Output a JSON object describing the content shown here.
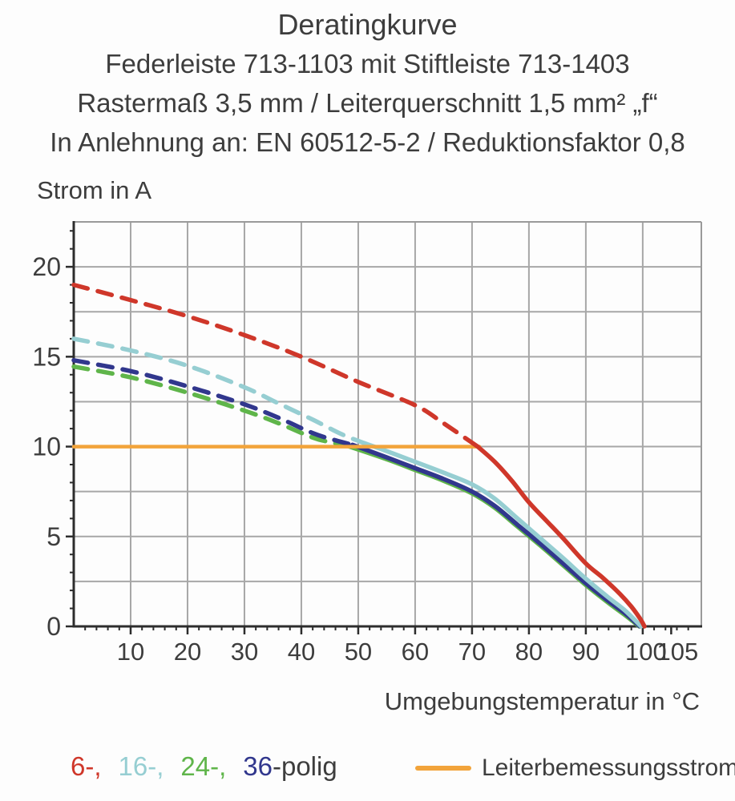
{
  "title": {
    "line1": "Deratingkurve",
    "line2": "Federleiste 713-1103 mit Stiftleiste 713-1403",
    "line3": "Rastermaß 3,5 mm / Leiterquerschnitt 1,5 mm² „f“",
    "line4": "In Anlehnung an: EN 60512-5-2 / Reduktionsfaktor 0,8"
  },
  "chart_data": {
    "type": "line",
    "title": "Deratingkurve",
    "ylabel": "Strom in A",
    "xlabel": "Umgebungstemperatur in °C",
    "xlim": [
      0,
      110.3
    ],
    "ylim": [
      0,
      22.5
    ],
    "grid": true,
    "x_gridlines": [
      10,
      20,
      30,
      40,
      50,
      60,
      70,
      80,
      90,
      100
    ],
    "y_gridlines": [
      2.5,
      5,
      7.5,
      10,
      12.5,
      15,
      17.5,
      20
    ],
    "x_major_ticks": [
      10,
      20,
      30,
      40,
      50,
      60,
      70,
      80,
      90,
      100,
      105
    ],
    "x_tick_labels": [
      "10",
      "20",
      "30",
      "40",
      "50",
      "60",
      "70",
      "80",
      "90",
      "100",
      "105"
    ],
    "x_minor_tick_step": 2,
    "y_major_ticks": [
      0,
      5,
      10,
      15,
      20
    ],
    "y_tick_labels": [
      "0",
      "5",
      "10",
      "15",
      "20"
    ],
    "y_minor_tick_step": 1,
    "colors": {
      "grid": "#a7a7a7",
      "axis": "#2d2d2d",
      "text": "#3d3d3d"
    },
    "draw_order": [
      "24-polig",
      "36-polig",
      "16-polig",
      "Leiterbemessungsstrom",
      "6-polig"
    ],
    "series": [
      {
        "name": "6-polig",
        "color": "#cf372a",
        "line_width": 5.5,
        "dashed_points": [
          [
            0,
            19.0
          ],
          [
            10,
            18.15
          ],
          [
            20,
            17.25
          ],
          [
            30,
            16.2
          ],
          [
            40,
            15.0
          ],
          [
            50,
            13.6
          ],
          [
            60,
            12.3
          ],
          [
            65,
            11.3
          ],
          [
            71,
            10.0
          ]
        ],
        "solid_points": [
          [
            71,
            10.0
          ],
          [
            74,
            9.15
          ],
          [
            77,
            8.1
          ],
          [
            80,
            6.9
          ],
          [
            83,
            5.9
          ],
          [
            86,
            4.9
          ],
          [
            90,
            3.5
          ],
          [
            93,
            2.7
          ],
          [
            96,
            1.8
          ],
          [
            98,
            1.1
          ],
          [
            99.5,
            0.45
          ],
          [
            100.3,
            0
          ]
        ]
      },
      {
        "name": "16-polig",
        "color": "#96ced2",
        "line_width": 5.5,
        "dashed_points": [
          [
            0,
            16.0
          ],
          [
            10,
            15.35
          ],
          [
            20,
            14.5
          ],
          [
            30,
            13.3
          ],
          [
            36,
            12.4
          ],
          [
            42,
            11.5
          ],
          [
            47,
            10.7
          ],
          [
            51,
            10.2
          ]
        ],
        "solid_points": [
          [
            51,
            10.2
          ],
          [
            55,
            9.75
          ],
          [
            60,
            9.15
          ],
          [
            65,
            8.55
          ],
          [
            70,
            7.9
          ],
          [
            74,
            7.1
          ],
          [
            78,
            6.0
          ],
          [
            82,
            4.9
          ],
          [
            86,
            3.8
          ],
          [
            90,
            2.65
          ],
          [
            94,
            1.6
          ],
          [
            97,
            0.85
          ],
          [
            99.7,
            0
          ]
        ]
      },
      {
        "name": "24-polig",
        "color": "#5fb54a",
        "line_width": 5.5,
        "dashed_points": [
          [
            0,
            14.45
          ],
          [
            10,
            13.85
          ],
          [
            20,
            13.0
          ],
          [
            30,
            12.0
          ],
          [
            36,
            11.3
          ],
          [
            42,
            10.5
          ],
          [
            45,
            10.25
          ],
          [
            48,
            10.05
          ]
        ],
        "solid_points": [
          [
            48,
            10.05
          ],
          [
            55,
            9.3
          ],
          [
            60,
            8.7
          ],
          [
            65,
            8.1
          ],
          [
            70,
            7.4
          ],
          [
            74,
            6.6
          ],
          [
            78,
            5.55
          ],
          [
            82,
            4.5
          ],
          [
            86,
            3.4
          ],
          [
            90,
            2.3
          ],
          [
            94,
            1.3
          ],
          [
            97,
            0.6
          ],
          [
            99.4,
            0
          ]
        ]
      },
      {
        "name": "36-polig",
        "color": "#31378d",
        "line_width": 5.5,
        "dashed_points": [
          [
            0,
            14.8
          ],
          [
            10,
            14.2
          ],
          [
            20,
            13.35
          ],
          [
            30,
            12.35
          ],
          [
            36,
            11.6
          ],
          [
            42,
            10.75
          ],
          [
            46,
            10.35
          ],
          [
            49,
            10.1
          ]
        ],
        "solid_points": [
          [
            49,
            10.1
          ],
          [
            55,
            9.4
          ],
          [
            60,
            8.8
          ],
          [
            65,
            8.2
          ],
          [
            70,
            7.5
          ],
          [
            74,
            6.7
          ],
          [
            78,
            5.65
          ],
          [
            82,
            4.6
          ],
          [
            86,
            3.5
          ],
          [
            90,
            2.4
          ],
          [
            94,
            1.4
          ],
          [
            97,
            0.7
          ],
          [
            99.5,
            0
          ]
        ]
      },
      {
        "name": "Leiterbemessungsstrom",
        "color": "#f2a43b",
        "line_width": 4.5,
        "solid_points": [
          [
            0,
            10
          ],
          [
            71.3,
            10
          ]
        ]
      }
    ]
  },
  "legend": {
    "poles": [
      {
        "label": "6-,",
        "color": "#cf372a"
      },
      {
        "label": "16-,",
        "color": "#96ced2"
      },
      {
        "label": "24-,",
        "color": "#5fb54a"
      },
      {
        "label": "36",
        "color": "#31378d"
      }
    ],
    "poles_suffix": "-polig",
    "rated": {
      "label": "Leiterbemessungsstrom",
      "color": "#f2a43b"
    }
  }
}
